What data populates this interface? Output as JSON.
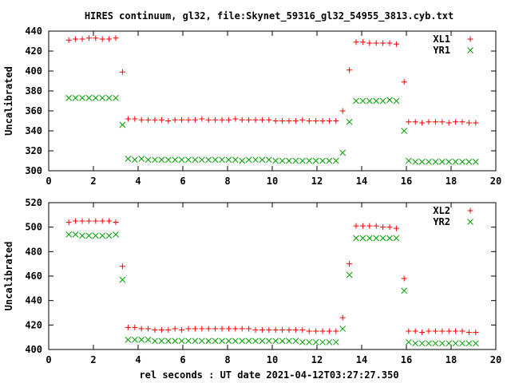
{
  "title": "HIRES continuum, gl32, file:Skynet_59316_gl32_54955_3813.cyb.txt",
  "xlabel": "rel seconds : UT date 2021-04-12T03:27:27.350",
  "chart_data": [
    {
      "type": "scatter",
      "ylabel": "Uncalibrated",
      "xlim": [
        0,
        20
      ],
      "ylim": [
        300,
        440
      ],
      "xticks": [
        0,
        2,
        4,
        6,
        8,
        10,
        12,
        14,
        16,
        18,
        20
      ],
      "yticks": [
        300,
        320,
        340,
        360,
        380,
        400,
        420,
        440
      ],
      "grid": false,
      "legend": "top-right",
      "series": [
        {
          "name": "XL1",
          "marker": "plus",
          "color": "#ff0000",
          "x": [
            0.9,
            1.2,
            1.5,
            1.8,
            2.1,
            2.4,
            2.7,
            3.0,
            3.3,
            3.55,
            3.85,
            4.15,
            4.45,
            4.75,
            5.05,
            5.35,
            5.65,
            5.95,
            6.25,
            6.55,
            6.85,
            7.15,
            7.45,
            7.75,
            8.05,
            8.35,
            8.65,
            8.95,
            9.25,
            9.55,
            9.85,
            10.15,
            10.45,
            10.75,
            11.05,
            11.35,
            11.65,
            11.95,
            12.25,
            12.55,
            12.85,
            13.15,
            13.45,
            13.75,
            14.05,
            14.35,
            14.65,
            14.95,
            15.25,
            15.55,
            15.9,
            16.1,
            16.4,
            16.7,
            17.0,
            17.3,
            17.6,
            17.9,
            18.2,
            18.5,
            18.8,
            19.1
          ],
          "y": [
            431,
            432,
            432,
            433,
            433,
            432,
            432,
            433,
            399,
            352,
            352,
            351,
            351,
            351,
            351,
            350,
            351,
            351,
            351,
            351,
            352,
            351,
            351,
            351,
            351,
            352,
            351,
            351,
            351,
            351,
            351,
            350,
            350,
            350,
            350,
            351,
            350,
            350,
            350,
            350,
            350,
            360,
            401,
            429,
            429,
            428,
            428,
            428,
            428,
            427,
            389,
            349,
            349,
            348,
            349,
            349,
            349,
            348,
            349,
            349,
            348,
            348
          ]
        },
        {
          "name": "YR1",
          "marker": "cross",
          "color": "#00a000",
          "x": [
            0.9,
            1.2,
            1.5,
            1.8,
            2.1,
            2.4,
            2.7,
            3.0,
            3.3,
            3.55,
            3.85,
            4.15,
            4.45,
            4.75,
            5.05,
            5.35,
            5.65,
            5.95,
            6.25,
            6.55,
            6.85,
            7.15,
            7.45,
            7.75,
            8.05,
            8.35,
            8.65,
            8.95,
            9.25,
            9.55,
            9.85,
            10.15,
            10.45,
            10.75,
            11.05,
            11.35,
            11.65,
            11.95,
            12.25,
            12.55,
            12.85,
            13.15,
            13.45,
            13.75,
            14.05,
            14.35,
            14.65,
            14.95,
            15.25,
            15.55,
            15.9,
            16.1,
            16.4,
            16.7,
            17.0,
            17.3,
            17.6,
            17.9,
            18.2,
            18.5,
            18.8,
            19.1
          ],
          "y": [
            373,
            373,
            373,
            373,
            373,
            373,
            373,
            373,
            346,
            312,
            311,
            312,
            311,
            311,
            311,
            311,
            311,
            311,
            311,
            311,
            311,
            311,
            311,
            311,
            311,
            311,
            310,
            311,
            311,
            311,
            311,
            310,
            310,
            310,
            310,
            310,
            310,
            310,
            310,
            310,
            310,
            318,
            349,
            370,
            370,
            370,
            370,
            370,
            371,
            370,
            340,
            310,
            309,
            309,
            309,
            309,
            309,
            309,
            309,
            309,
            309,
            309
          ]
        }
      ]
    },
    {
      "type": "scatter",
      "ylabel": "Uncalibrated",
      "xlim": [
        0,
        20
      ],
      "ylim": [
        400,
        520
      ],
      "xticks": [
        0,
        2,
        4,
        6,
        8,
        10,
        12,
        14,
        16,
        18,
        20
      ],
      "yticks": [
        400,
        420,
        440,
        460,
        480,
        500,
        520
      ],
      "grid": false,
      "legend": "top-right",
      "series": [
        {
          "name": "XL2",
          "marker": "plus",
          "color": "#ff0000",
          "x": [
            0.9,
            1.2,
            1.5,
            1.8,
            2.1,
            2.4,
            2.7,
            3.0,
            3.3,
            3.55,
            3.85,
            4.15,
            4.45,
            4.75,
            5.05,
            5.35,
            5.65,
            5.95,
            6.25,
            6.55,
            6.85,
            7.15,
            7.45,
            7.75,
            8.05,
            8.35,
            8.65,
            8.95,
            9.25,
            9.55,
            9.85,
            10.15,
            10.45,
            10.75,
            11.05,
            11.35,
            11.65,
            11.95,
            12.25,
            12.55,
            12.85,
            13.15,
            13.45,
            13.75,
            14.05,
            14.35,
            14.65,
            14.95,
            15.25,
            15.55,
            15.9,
            16.1,
            16.4,
            16.7,
            17.0,
            17.3,
            17.6,
            17.9,
            18.2,
            18.5,
            18.8,
            19.1
          ],
          "y": [
            504,
            505,
            505,
            505,
            505,
            505,
            505,
            504,
            468,
            418,
            418,
            417,
            417,
            416,
            416,
            416,
            417,
            416,
            417,
            417,
            417,
            417,
            417,
            417,
            417,
            417,
            417,
            417,
            416,
            416,
            416,
            416,
            416,
            416,
            416,
            416,
            415,
            415,
            415,
            415,
            415,
            426,
            470,
            501,
            501,
            501,
            501,
            500,
            500,
            499,
            458,
            415,
            415,
            414,
            415,
            415,
            415,
            415,
            415,
            415,
            414,
            414
          ]
        },
        {
          "name": "YR2",
          "marker": "cross",
          "color": "#00a000",
          "x": [
            0.9,
            1.2,
            1.5,
            1.8,
            2.1,
            2.4,
            2.7,
            3.0,
            3.3,
            3.55,
            3.85,
            4.15,
            4.45,
            4.75,
            5.05,
            5.35,
            5.65,
            5.95,
            6.25,
            6.55,
            6.85,
            7.15,
            7.45,
            7.75,
            8.05,
            8.35,
            8.65,
            8.95,
            9.25,
            9.55,
            9.85,
            10.15,
            10.45,
            10.75,
            11.05,
            11.35,
            11.65,
            11.95,
            12.25,
            12.55,
            12.85,
            13.15,
            13.45,
            13.75,
            14.05,
            14.35,
            14.65,
            14.95,
            15.25,
            15.55,
            15.9,
            16.1,
            16.4,
            16.7,
            17.0,
            17.3,
            17.6,
            17.9,
            18.2,
            18.5,
            18.8,
            19.1
          ],
          "y": [
            494,
            494,
            493,
            493,
            493,
            493,
            493,
            494,
            457,
            408,
            408,
            408,
            408,
            407,
            407,
            407,
            407,
            407,
            407,
            407,
            407,
            407,
            407,
            407,
            407,
            407,
            407,
            407,
            407,
            407,
            407,
            407,
            407,
            407,
            407,
            406,
            406,
            406,
            406,
            406,
            406,
            417,
            461,
            491,
            491,
            491,
            491,
            491,
            491,
            491,
            448,
            406,
            405,
            405,
            405,
            405,
            405,
            405,
            405,
            405,
            405,
            405
          ]
        }
      ]
    }
  ]
}
